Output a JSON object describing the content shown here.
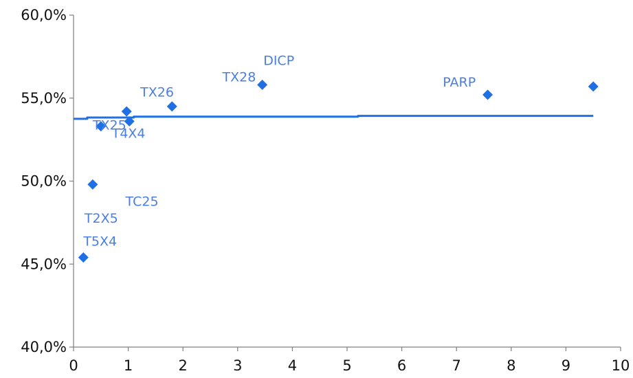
{
  "colors": {
    "series": "#1f6fe5",
    "label": "#4a7fe0",
    "axis": "#7f7f7f",
    "trend": "#1f6fe5"
  },
  "chart_data": {
    "type": "scatter",
    "title": "",
    "xlabel": "",
    "ylabel": "",
    "xlim": [
      0,
      10
    ],
    "ylim": [
      40,
      60
    ],
    "x_ticks": [
      0,
      1,
      2,
      3,
      4,
      5,
      6,
      7,
      8,
      9,
      10
    ],
    "y_ticks": [
      40,
      45,
      50,
      55,
      60
    ],
    "y_tick_labels": [
      "40,0%",
      "45,0%",
      "50,0%",
      "55,0%",
      "60,0%"
    ],
    "x_tick_labels": [
      "0",
      "1",
      "2",
      "3",
      "4",
      "5",
      "6",
      "7",
      "8",
      "9",
      "10"
    ],
    "grid": false,
    "legend": "none",
    "points": [
      {
        "x": 0.18,
        "y": 45.4
      },
      {
        "x": 0.35,
        "y": 49.8
      },
      {
        "x": 0.5,
        "y": 53.3
      },
      {
        "x": 0.97,
        "y": 54.2
      },
      {
        "x": 1.02,
        "y": 53.6
      },
      {
        "x": 1.8,
        "y": 54.5
      },
      {
        "x": 3.45,
        "y": 55.8
      },
      {
        "x": 7.57,
        "y": 55.2
      },
      {
        "x": 9.5,
        "y": 55.7
      }
    ],
    "labels": [
      {
        "text": "T5X4",
        "x": 0.18,
        "y": 46.1
      },
      {
        "text": "T2X5",
        "x": 0.2,
        "y": 47.5
      },
      {
        "text": "TC25",
        "x": 0.95,
        "y": 48.5
      },
      {
        "text": "TX25",
        "x": 0.35,
        "y": 53.1
      },
      {
        "text": "T4X4",
        "x": 0.7,
        "y": 52.6
      },
      {
        "text": "TX26",
        "x": 1.22,
        "y": 55.1
      },
      {
        "text": "TX28",
        "x": 2.72,
        "y": 56.0
      },
      {
        "text": "DICP",
        "x": 3.47,
        "y": 57.0
      },
      {
        "text": "PARP",
        "x": 6.75,
        "y": 55.7
      }
    ],
    "trendline": {
      "x": [
        0,
        0.25,
        0.25,
        1.1,
        1.1,
        5.2,
        5.2,
        9.5
      ],
      "y": [
        53.75,
        53.75,
        53.83,
        53.83,
        53.88,
        53.88,
        53.93,
        53.93
      ]
    }
  }
}
